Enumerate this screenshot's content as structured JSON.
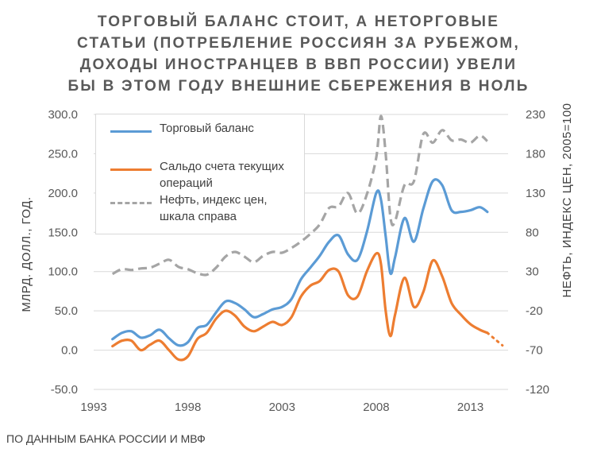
{
  "title_lines": [
    "ТОРГОВЫЙ БАЛАНС СТОИТ, А НЕТОРГОВЫЕ",
    "СТАТЬИ (ПОТРЕБЛЕНИЕ РОССИЯН ЗА РУБЕЖОМ,",
    "ДОХОДЫ ИНОСТРАНЦЕВ В ВВП РОССИИ) УВЕЛИ",
    "БЫ В ЭТОМ ГОДУ ВНЕШНИЕ СБЕРЕЖЕНИЯ В НОЛЬ"
  ],
  "source": "ПО ДАННЫМ БАНКА РОССИИ И МВФ",
  "chart_data": {
    "type": "line",
    "title": "ТОРГОВЫЙ БАЛАНС СТОИТ, А НЕТОРГОВЫЕ СТАТЬИ (ПОТРЕБЛЕНИЕ РОССИЯН ЗА РУБЕЖОМ, ДОХОДЫ ИНОСТРАНЦЕВ В ВВП РОССИИ) УВЕЛИ БЫ В ЭТОМ ГОДУ ВНЕШНИЕ СБЕРЕЖЕНИЯ В НОЛЬ",
    "ylabel": "МЛРД. ДОЛЛ., ГОД.",
    "y2label": "НЕФТЬ, ИНДЕКС ЦЕН, 2005=100",
    "xlim": [
      1993,
      2015
    ],
    "ylim": [
      -50,
      300
    ],
    "y2lim": [
      -120,
      230
    ],
    "grid": true,
    "legend_position": "top-left",
    "xticks": [
      1993,
      1998,
      2003,
      2008,
      2013
    ],
    "yticks": [
      "300.0",
      "250.0",
      "200.0",
      "150.0",
      "100.0",
      "50.0",
      "0.0",
      "-50.0"
    ],
    "y2ticks": [
      "230",
      "180",
      "130",
      "80",
      "30",
      "-20",
      "-70",
      "-120"
    ],
    "series": [
      {
        "name": "Торговый баланс",
        "axis": "left",
        "color": "#5b9bd5",
        "style": "solid",
        "x": [
          1994.0,
          1994.5,
          1995.0,
          1995.5,
          1996.0,
          1996.5,
          1997.0,
          1997.5,
          1998.0,
          1998.5,
          1999.0,
          1999.5,
          2000.0,
          2000.5,
          2001.0,
          2001.5,
          2002.0,
          2002.5,
          2003.0,
          2003.5,
          2004.0,
          2004.5,
          2005.0,
          2005.5,
          2006.0,
          2006.5,
          2007.0,
          2007.5,
          2008.0,
          2008.25,
          2008.5,
          2008.75,
          2009.0,
          2009.5,
          2010.0,
          2010.5,
          2011.0,
          2011.5,
          2012.0,
          2012.5,
          2013.0,
          2013.5,
          2013.9
        ],
        "values": [
          14,
          22,
          24,
          16,
          19,
          26,
          15,
          6,
          10,
          28,
          32,
          48,
          62,
          60,
          52,
          42,
          46,
          52,
          55,
          65,
          90,
          105,
          120,
          138,
          146,
          122,
          115,
          150,
          200,
          192,
          145,
          98,
          118,
          168,
          138,
          180,
          215,
          210,
          178,
          176,
          178,
          182,
          176
        ]
      },
      {
        "name": "Сальдо счета текущих операций",
        "axis": "left",
        "color": "#ed7d31",
        "style": "solid",
        "x": [
          1994.0,
          1994.5,
          1995.0,
          1995.5,
          1996.0,
          1996.5,
          1997.0,
          1997.5,
          1998.0,
          1998.5,
          1999.0,
          1999.5,
          2000.0,
          2000.5,
          2001.0,
          2001.5,
          2002.0,
          2002.5,
          2003.0,
          2003.5,
          2004.0,
          2004.5,
          2005.0,
          2005.5,
          2006.0,
          2006.5,
          2007.0,
          2007.5,
          2008.0,
          2008.25,
          2008.5,
          2008.75,
          2009.0,
          2009.5,
          2010.0,
          2010.5,
          2011.0,
          2011.5,
          2012.0,
          2012.5,
          2013.0,
          2013.5,
          2013.9
        ],
        "values": [
          5,
          12,
          12,
          0,
          7,
          12,
          0,
          -12,
          -8,
          14,
          22,
          40,
          50,
          44,
          30,
          24,
          30,
          36,
          32,
          42,
          68,
          82,
          88,
          102,
          100,
          70,
          68,
          100,
          123,
          110,
          50,
          18,
          45,
          92,
          55,
          74,
          114,
          94,
          60,
          45,
          33,
          26,
          22
        ]
      },
      {
        "name": "Нефть, индекс цен, шкала справа",
        "axis": "right",
        "color": "#a5a5a5",
        "style": "dashed",
        "x": [
          1994.0,
          1994.5,
          1995.0,
          1995.5,
          1996.0,
          1996.5,
          1997.0,
          1997.5,
          1998.0,
          1998.5,
          1999.0,
          1999.5,
          2000.0,
          2000.5,
          2001.0,
          2001.5,
          2002.0,
          2002.5,
          2003.0,
          2003.5,
          2004.0,
          2004.5,
          2005.0,
          2005.5,
          2006.0,
          2006.5,
          2007.0,
          2007.5,
          2008.0,
          2008.25,
          2008.5,
          2008.75,
          2009.0,
          2009.5,
          2010.0,
          2010.5,
          2011.0,
          2011.5,
          2012.0,
          2012.5,
          2013.0,
          2013.5,
          2013.9
        ],
        "values": [
          27,
          33,
          32,
          34,
          35,
          40,
          45,
          36,
          33,
          28,
          26,
          35,
          49,
          55,
          49,
          42,
          50,
          55,
          54,
          60,
          68,
          78,
          90,
          111,
          113,
          130,
          104,
          128,
          175,
          228,
          180,
          100,
          94,
          140,
          145,
          205,
          194,
          210,
          197,
          198,
          194,
          203,
          196
        ]
      },
      {
        "name": "",
        "axis": "left",
        "color": "#ed7d31",
        "style": "dotted",
        "x": [
          2013.9,
          2014.3,
          2014.7
        ],
        "values": [
          22,
          14,
          6
        ]
      }
    ]
  }
}
